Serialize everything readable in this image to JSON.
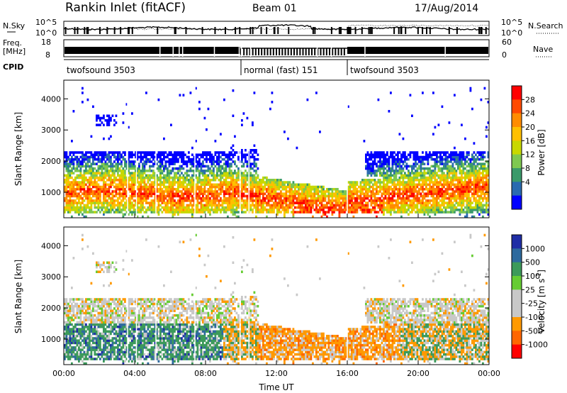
{
  "header": {
    "title": "Rankin Inlet (fitACF)",
    "beam": "Beam 01",
    "date": "17/Aug/2014"
  },
  "noise_panel": {
    "left_label": "N.Sky",
    "right_label": "N.Search",
    "left_ticks": [
      "10^5",
      "10^0"
    ],
    "right_ticks": [
      "10^5",
      "10^0"
    ]
  },
  "freq_panel": {
    "left_label": "Freq.",
    "left_unit": "[MHz]",
    "right_label": "Nave",
    "left_ticks": [
      "18",
      "8"
    ],
    "right_ticks": [
      "60",
      "0"
    ]
  },
  "cpid_panel": {
    "label": "CPID",
    "segments": [
      {
        "name": "twofsound 3503",
        "start_h": 0,
        "end_h": 10
      },
      {
        "name": "normal (fast) 151",
        "start_h": 10,
        "end_h": 16
      },
      {
        "name": "twofsound 3503",
        "start_h": 16,
        "end_h": 24
      }
    ]
  },
  "chart_data": [
    {
      "type": "heatmap",
      "name": "power",
      "xlabel": "Time UT",
      "ylabel": "Slant Range [km]",
      "xlim": [
        0,
        24
      ],
      "ylim": [
        180,
        4600
      ],
      "y_ticks": [
        "1000",
        "2000",
        "3000",
        "4000"
      ],
      "colorbar": {
        "label": "Power [dB]",
        "ticks": [
          "28",
          "24",
          "20",
          "16",
          "12",
          "8",
          "4"
        ],
        "colors": [
          "#ff0000",
          "#ff4a00",
          "#ff8c00",
          "#ffc000",
          "#c8d800",
          "#7ec850",
          "#3a9a6a",
          "#2a6ab0",
          "#0000ff"
        ]
      }
    },
    {
      "type": "heatmap",
      "name": "velocity",
      "xlabel": "Time UT",
      "ylabel": "Slant Range [km]",
      "xlim": [
        0,
        24
      ],
      "ylim": [
        180,
        4600
      ],
      "y_ticks": [
        "1000",
        "2000",
        "3000",
        "4000"
      ],
      "x_ticks": [
        "00:00",
        "04:00",
        "08:00",
        "12:00",
        "16:00",
        "20:00",
        "00:00"
      ],
      "colorbar": {
        "label": "Velocity [m s",
        "label_sup": "-1",
        "label_end": "]",
        "ticks": [
          "1000",
          "500",
          "100",
          "25",
          "-25",
          "-100",
          "-500",
          "-1000"
        ],
        "colors": [
          "#1f2ea6",
          "#2e6a9e",
          "#3c9a5a",
          "#66cc33",
          "#c8c8c8",
          "#c8c8c8",
          "#ff9900",
          "#ff6600",
          "#ff0000"
        ]
      }
    }
  ]
}
